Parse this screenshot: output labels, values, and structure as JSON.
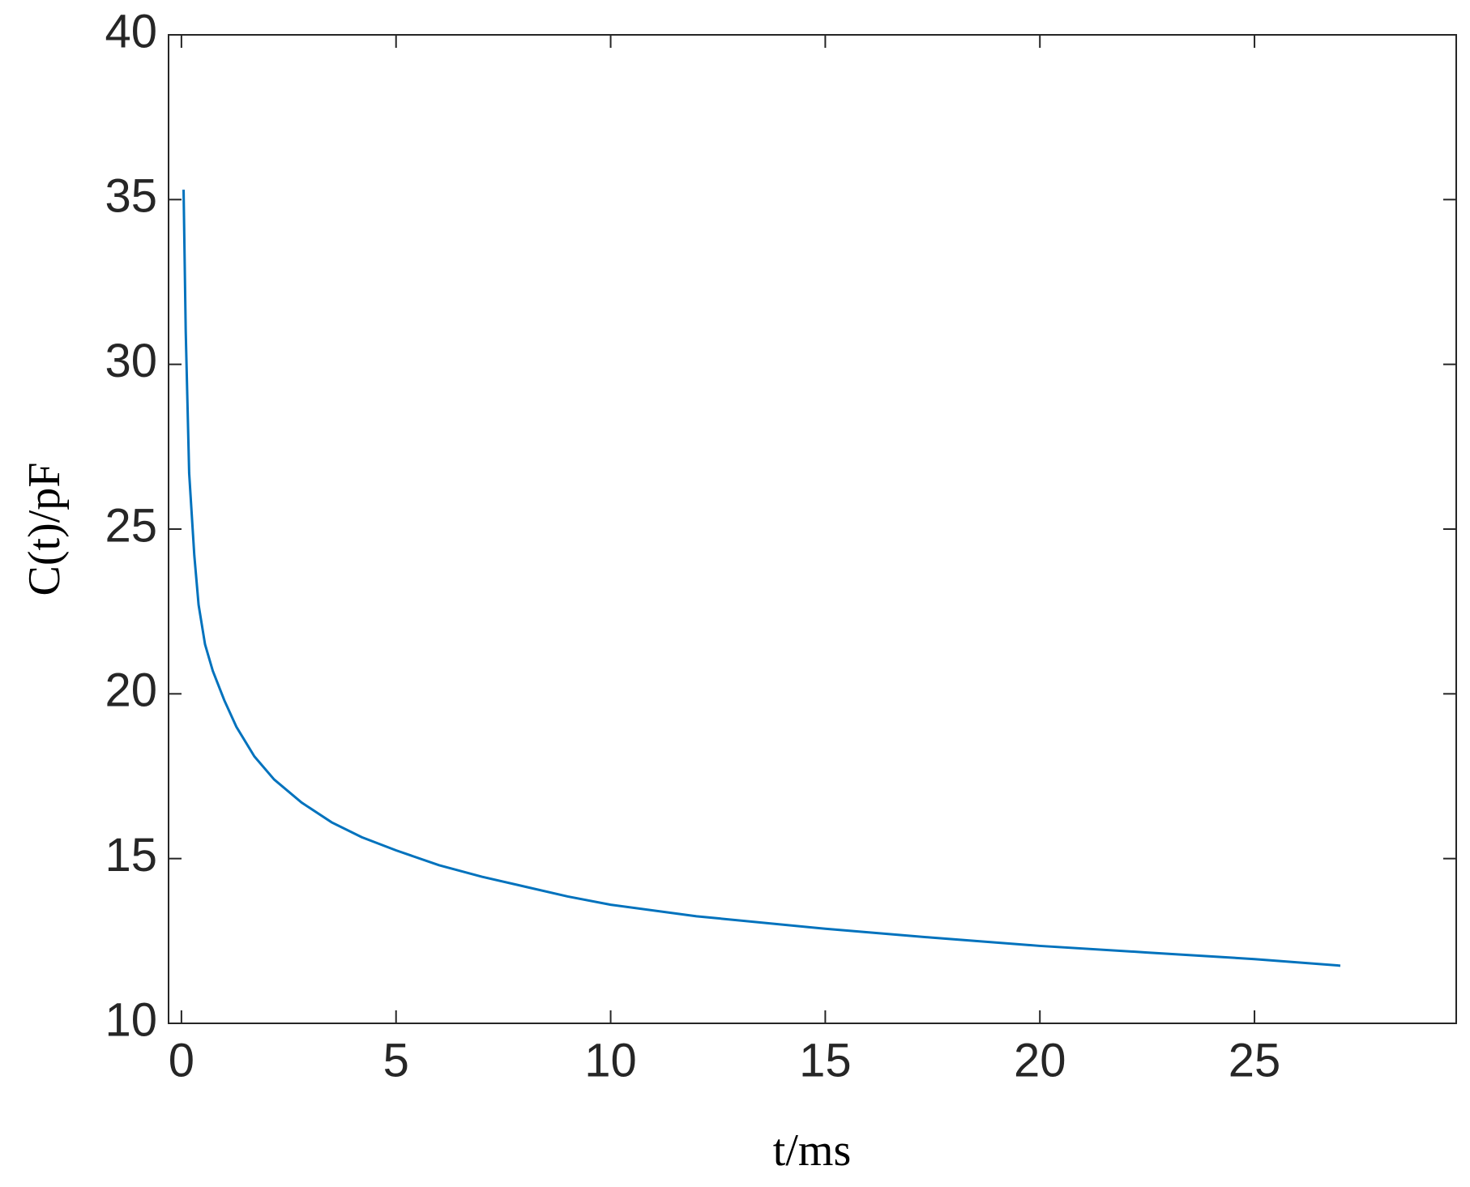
{
  "chart_data": {
    "type": "line",
    "x_label": "t/ms",
    "y_label": "C(t)/pF",
    "x": [
      0.05,
      0.1,
      0.18,
      0.3,
      0.4,
      0.55,
      0.73,
      1.0,
      1.28,
      1.7,
      2.16,
      2.8,
      3.5,
      4.2,
      5,
      6,
      7,
      8,
      9,
      10,
      12,
      15,
      17.5,
      20,
      22.5,
      25,
      27
    ],
    "series": [
      {
        "name": "C(t)",
        "color": "#0072bd",
        "values": [
          35.3,
          31.0,
          26.7,
          24.2,
          22.7,
          21.5,
          20.7,
          19.8,
          19.0,
          18.1,
          17.4,
          16.7,
          16.1,
          15.65,
          15.25,
          14.8,
          14.45,
          14.15,
          13.85,
          13.6,
          13.25,
          12.87,
          12.6,
          12.35,
          12.15,
          11.95,
          11.75
        ]
      }
    ],
    "xlim": [
      -0.3,
      29.7
    ],
    "ylim": [
      10,
      40
    ],
    "xticks": [
      0,
      5,
      10,
      15,
      20,
      25
    ],
    "yticks": [
      10,
      15,
      20,
      25,
      30,
      35,
      40
    ],
    "grid": false,
    "box": true
  }
}
